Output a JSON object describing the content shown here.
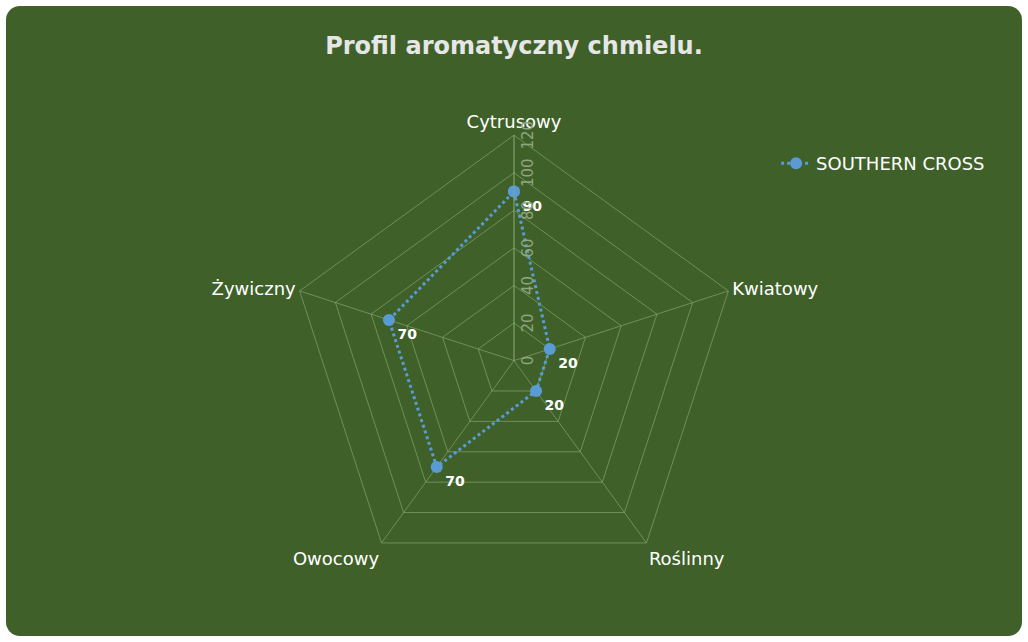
{
  "chart_data": {
    "type": "radar",
    "title": "Profil aromatyczny chmielu.",
    "categories": [
      "Cytrusowy",
      "Kwiatowy",
      "Roślinny",
      "Owocowy",
      "Żywiczny"
    ],
    "series": [
      {
        "name": "SOUTHERN CROSS",
        "color": "#5b9bd5",
        "values": [
          90,
          20,
          20,
          70,
          70
        ],
        "line_style": "dotted",
        "marker": "circle"
      }
    ],
    "ylim": [
      0,
      120
    ],
    "yticks": [
      0,
      20,
      40,
      60,
      80,
      100,
      120
    ],
    "grid": true,
    "legend": "top right",
    "data_labels": true
  }
}
